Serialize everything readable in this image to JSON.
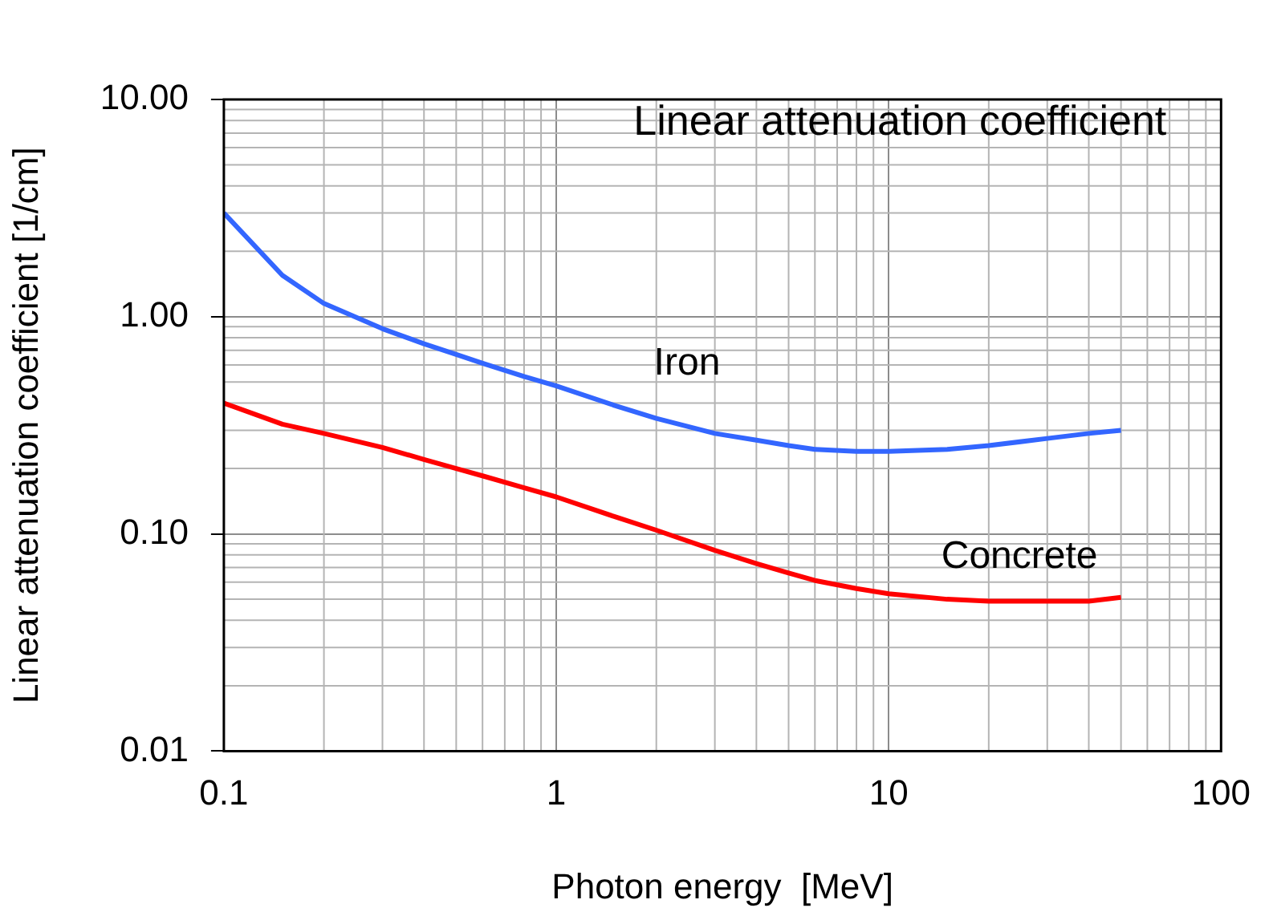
{
  "chart_data": {
    "type": "line",
    "title": "Linear attenuation coefficient",
    "xlabel": "Photon energy  [MeV]",
    "ylabel": "Linear attenuation coefficient [1/cm]",
    "x": [
      0.1,
      0.15,
      0.2,
      0.3,
      0.4,
      0.5,
      0.6,
      0.8,
      1,
      1.5,
      2,
      3,
      4,
      5,
      6,
      8,
      10,
      15,
      20,
      30,
      40,
      50
    ],
    "series": [
      {
        "name": "Iron",
        "color": "#3366ff",
        "values": [
          3.0,
          1.55,
          1.15,
          0.88,
          0.75,
          0.67,
          0.61,
          0.53,
          0.48,
          0.39,
          0.34,
          0.29,
          0.27,
          0.255,
          0.245,
          0.24,
          0.24,
          0.245,
          0.255,
          0.275,
          0.29,
          0.3
        ]
      },
      {
        "name": "Concrete",
        "color": "#ff0000",
        "values": [
          0.4,
          0.32,
          0.29,
          0.25,
          0.22,
          0.2,
          0.185,
          0.163,
          0.148,
          0.12,
          0.104,
          0.084,
          0.073,
          0.066,
          0.061,
          0.056,
          0.053,
          0.05,
          0.049,
          0.049,
          0.049,
          0.051
        ]
      }
    ],
    "log": "xy",
    "xlim": [
      0.1,
      100
    ],
    "xticks": [
      0.1,
      1,
      10,
      100
    ],
    "ylim": [
      0.01,
      10
    ],
    "yticks": [
      {
        "value": 0.01,
        "label": "0.01"
      },
      {
        "value": 0.1,
        "label": "0.10"
      },
      {
        "value": 1,
        "label": "1.00"
      },
      {
        "value": 10,
        "label": "10.00"
      }
    ],
    "grid": true,
    "legend": false,
    "marker": "none",
    "line_style": "solid"
  }
}
